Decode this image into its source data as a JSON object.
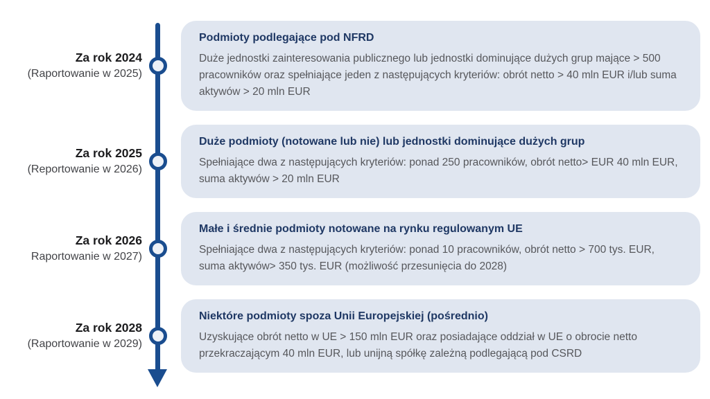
{
  "colors": {
    "timeline_blue": "#1a4d8f",
    "box_background": "#e0e6f0",
    "title_navy": "#1f3864",
    "body_gray": "#56575b",
    "label_black": "#1c1c1e"
  },
  "timeline": {
    "entries": [
      {
        "year_label": "Za rok 2024",
        "reporting_label": "(Raportowanie w 2025)",
        "title": "Podmioty podlegające pod NFRD",
        "body": "Duże jednostki zainteresowania publicznego lub jednostki dominujące dużych grup mające > 500 pracowników oraz spełniające jeden z następujących kryteriów: obrót netto > 40 mln EUR i/lub suma aktywów > 20 mln EUR"
      },
      {
        "year_label": "Za rok 2025",
        "reporting_label": "(Reportowanie w 2026)",
        "title": "Duże podmioty (notowane lub nie) lub jednostki dominujące dużych grup",
        "body": "Spełniające dwa z następujących kryteriów: ponad 250 pracowników, obrót netto> EUR 40 mln EUR, suma aktywów > 20 mln EUR"
      },
      {
        "year_label": "Za rok 2026",
        "reporting_label": "Raportowanie w 2027)",
        "title": "Małe i średnie podmioty notowane na rynku regulowanym UE",
        "body": "Spełniające dwa z następujących kryteriów: ponad 10 pracowników, obrót netto > 700 tys. EUR, suma aktywów> 350 tys. EUR (możliwość przesunięcia do 2028)"
      },
      {
        "year_label": "Za rok 2028",
        "reporting_label": "(Raportowanie w 2029)",
        "title": "Niektóre podmioty spoza Unii Europejskiej (pośrednio)",
        "body": "Uzyskujące obrót netto w UE > 150 mln EUR oraz posiadające oddział w UE o obrocie netto przekraczającym 40 mln EUR, lub unijną spółkę zależną podlegającą pod CSRD"
      }
    ]
  }
}
